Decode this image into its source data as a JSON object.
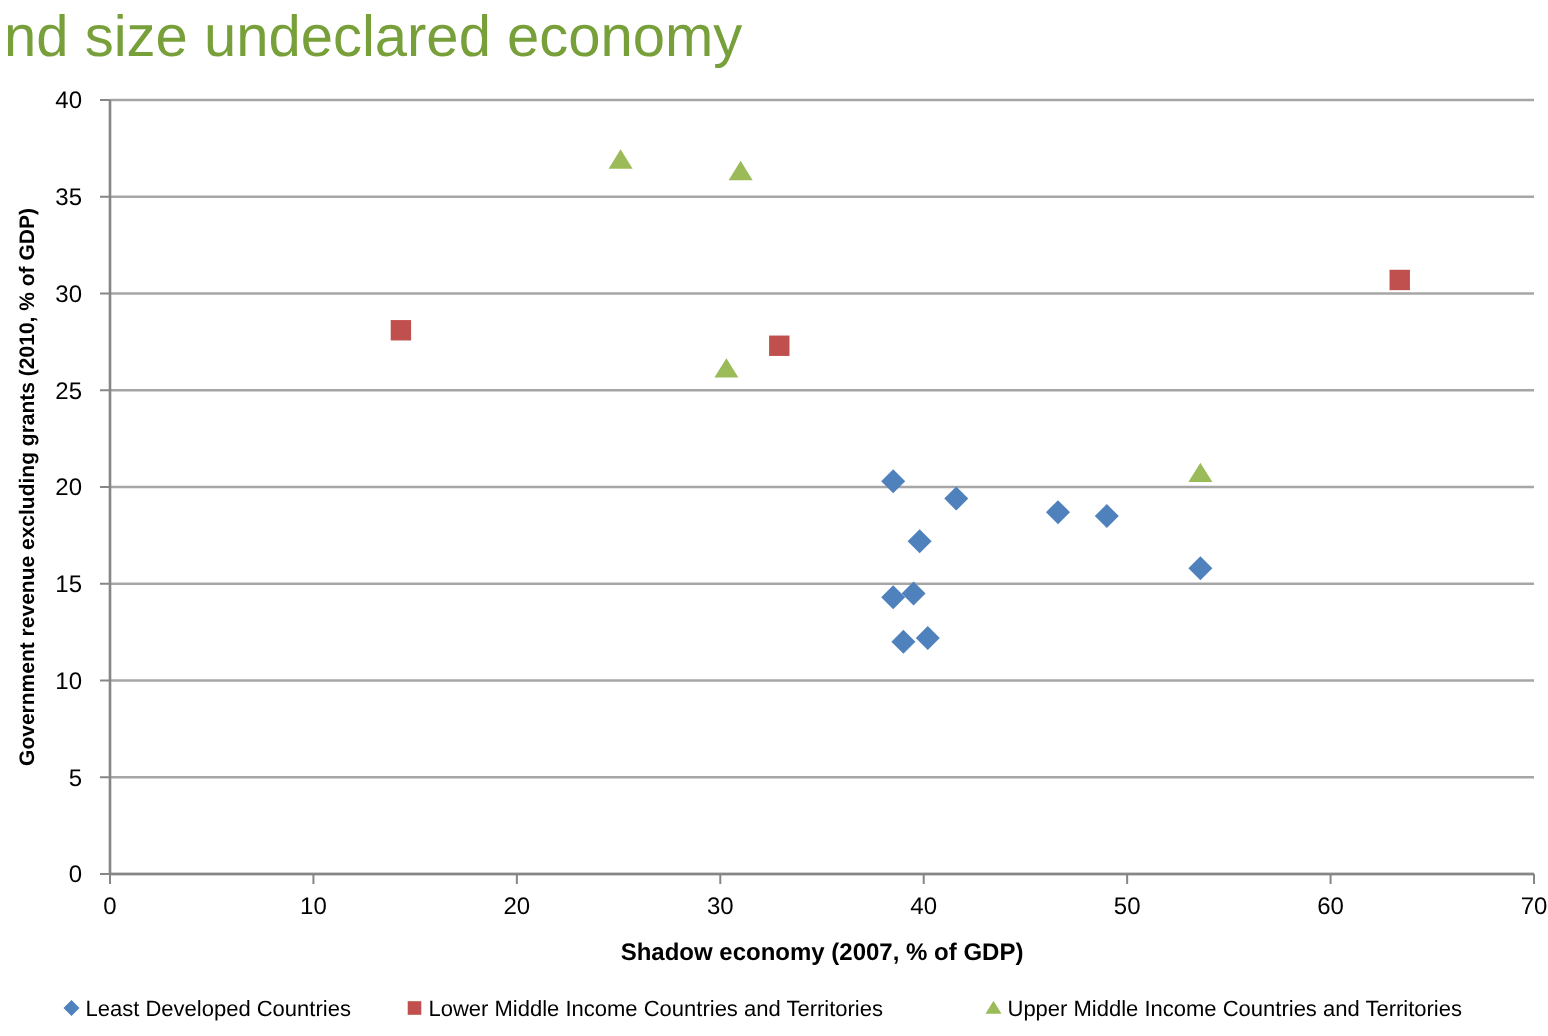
{
  "chart_data": {
    "type": "scatter",
    "title": "nd size undeclared economy",
    "xlabel": "Shadow economy (2007, % of GDP)",
    "ylabel": "Government revenue excluding grants (2010, % of GDP)",
    "xlim": [
      0,
      70
    ],
    "xticks": [
      0,
      10,
      20,
      30,
      40,
      50,
      60,
      70
    ],
    "ylim": [
      0,
      40
    ],
    "yticks": [
      0,
      5,
      10,
      15,
      20,
      25,
      30,
      35,
      40
    ],
    "grid": "y",
    "legend": "bottom",
    "series": [
      {
        "name": "Least Developed Countries",
        "color": "#4f81bd",
        "marker": "diamond",
        "x": [
          38.5,
          41.6,
          46.6,
          49.0,
          39.8,
          53.6,
          38.5,
          39.5,
          39.0,
          40.2
        ],
        "values": [
          20.3,
          19.4,
          18.7,
          18.5,
          17.2,
          15.8,
          14.3,
          14.5,
          12.0,
          12.2
        ]
      },
      {
        "name": "Lower Middle Income Countries and Territories",
        "color": "#c0504d",
        "marker": "square",
        "x": [
          14.3,
          32.9,
          63.4
        ],
        "values": [
          28.1,
          27.3,
          30.7
        ]
      },
      {
        "name": "Upper Middle Income Countries and Territories",
        "color": "#9bbb59",
        "marker": "triangle",
        "x": [
          25.1,
          31.0,
          30.3,
          53.6
        ],
        "values": [
          36.9,
          36.3,
          26.1,
          20.7
        ]
      }
    ]
  }
}
